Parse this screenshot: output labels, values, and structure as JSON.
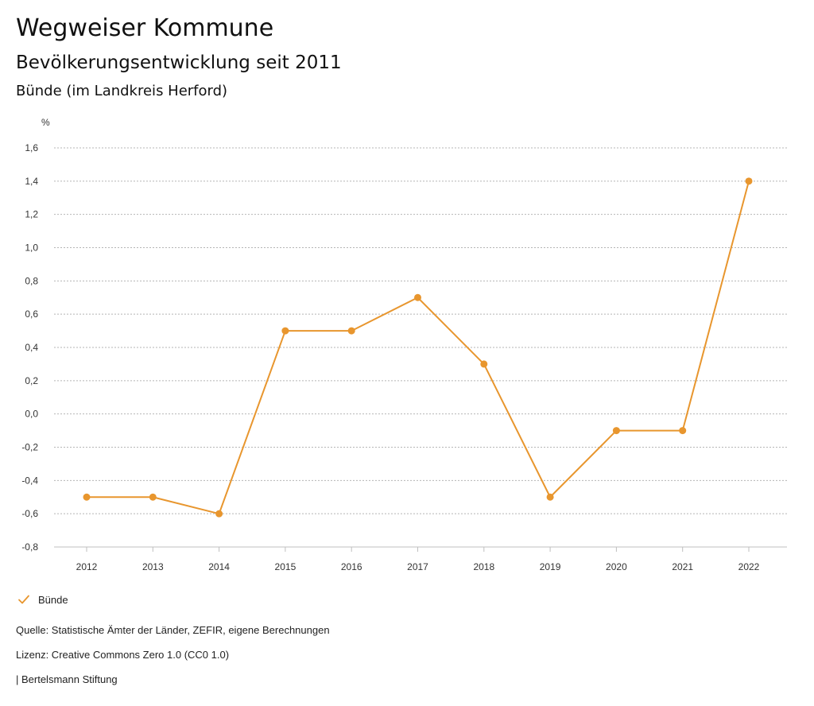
{
  "header": {
    "title": "Wegweiser Kommune",
    "subtitle": "Bevölkerungsentwicklung seit 2011",
    "region": "Bünde (im Landkreis Herford)"
  },
  "chart_data": {
    "type": "line",
    "title": "Bevölkerungsentwicklung seit 2011",
    "xlabel": "",
    "ylabel": "%",
    "x": [
      "2012",
      "2013",
      "2014",
      "2015",
      "2016",
      "2017",
      "2018",
      "2019",
      "2020",
      "2021",
      "2022"
    ],
    "series": [
      {
        "name": "Bünde",
        "color": "#e8962e",
        "values": [
          -0.5,
          -0.5,
          -0.6,
          0.5,
          0.5,
          0.7,
          0.3,
          -0.5,
          -0.1,
          -0.1,
          1.4
        ]
      }
    ],
    "ylim": [
      -0.8,
      1.6
    ],
    "yticks": [
      "1,6",
      "1,4",
      "1,2",
      "1,0",
      "0,8",
      "0,6",
      "0,4",
      "0,2",
      "0,0",
      "-0,2",
      "-0,4",
      "-0,6",
      "-0,8"
    ],
    "ytick_values": [
      1.6,
      1.4,
      1.2,
      1.0,
      0.8,
      0.6,
      0.4,
      0.2,
      0.0,
      -0.2,
      -0.4,
      -0.6,
      -0.8
    ],
    "grid": true,
    "legend": "bottom-left"
  },
  "legend": {
    "label": "Bünde",
    "icon": "check-icon"
  },
  "footer": {
    "source": "Quelle: Statistische Ämter der Länder, ZEFIR, eigene Berechnungen",
    "license": "Lizenz: Creative Commons Zero 1.0 (CC0 1.0)",
    "publisher": "| Bertelsmann Stiftung"
  }
}
